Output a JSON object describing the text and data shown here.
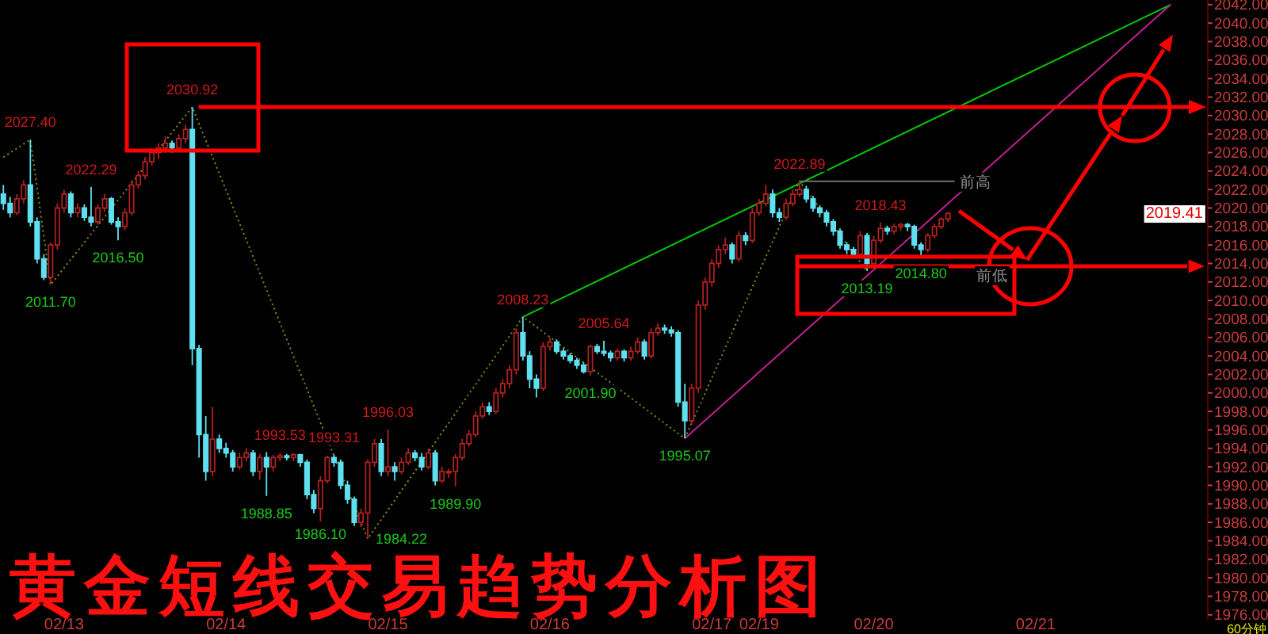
{
  "chart_data": {
    "type": "candlestick",
    "title": "黄金短线交易趋势分析图",
    "categories": [
      null,
      null,
      null,
      null,
      null,
      null,
      null,
      null,
      null,
      "02/13",
      null,
      null,
      null,
      null,
      null,
      null,
      null,
      null,
      null,
      null,
      null,
      null,
      null,
      null,
      null,
      null,
      null,
      null,
      null,
      null,
      null,
      null,
      null,
      "02/14",
      null,
      null,
      null,
      null,
      null,
      null,
      null,
      null,
      null,
      null,
      null,
      null,
      null,
      null,
      null,
      null,
      null,
      null,
      null,
      null,
      null,
      null,
      null,
      "02/15",
      null,
      null,
      null,
      null,
      null,
      null,
      null,
      null,
      null,
      null,
      null,
      null,
      null,
      null,
      null,
      null,
      null,
      null,
      null,
      null,
      null,
      null,
      null,
      "02/16",
      null,
      null,
      null,
      null,
      null,
      null,
      null,
      null,
      null,
      null,
      null,
      null,
      null,
      null,
      null,
      null,
      null,
      null,
      null,
      null,
      null,
      null,
      null,
      "02/17",
      null,
      null,
      null,
      null,
      null,
      null,
      "02/19",
      null,
      null,
      null,
      null,
      null,
      null,
      null,
      null,
      null,
      null,
      null,
      null,
      null,
      null,
      null,
      null,
      "02/20",
      null,
      null,
      null,
      null,
      null,
      null,
      null,
      null,
      null,
      null,
      null,
      null,
      null,
      null,
      null,
      null,
      null,
      null,
      null,
      null,
      null,
      null,
      null,
      "02/21",
      null,
      null,
      null,
      null,
      null,
      null,
      null,
      null,
      null,
      null,
      null,
      null,
      null,
      null,
      null,
      null,
      null,
      null,
      null,
      null,
      null,
      null,
      null,
      null,
      null
    ],
    "ohlc": [
      [
        2021.5,
        2022.5,
        2019.8,
        2020.5
      ],
      [
        2020.5,
        2021.2,
        2019,
        2019.5
      ],
      [
        2019.5,
        2021.5,
        2019.2,
        2021
      ],
      [
        2021,
        2023,
        2020.5,
        2022.5
      ],
      [
        2022.5,
        2027.4,
        2018,
        2018.5
      ],
      [
        2018.5,
        2019,
        2014,
        2014.5
      ],
      [
        2014.5,
        2015,
        2012.2,
        2012.5
      ],
      [
        2012.5,
        2016.3,
        2011.7,
        2016
      ],
      [
        2016,
        2020.5,
        2015.5,
        2020
      ],
      [
        2020,
        2022,
        2019.5,
        2021.5
      ],
      [
        2021.5,
        2021.8,
        2019,
        2019.5
      ],
      [
        2019.5,
        2020.5,
        2019,
        2020
      ],
      [
        2020,
        2020.4,
        2018.6,
        2019
      ],
      [
        2019,
        2022.29,
        2018,
        2018.5
      ],
      [
        2018.5,
        2020.4,
        2018.2,
        2020
      ],
      [
        2020,
        2021.5,
        2019.6,
        2021
      ],
      [
        2021,
        2021.2,
        2018.2,
        2018.5
      ],
      [
        2018.5,
        2019,
        2016.5,
        2018
      ],
      [
        2018,
        2020,
        2017.6,
        2019.5
      ],
      [
        2019.5,
        2023,
        2019.2,
        2022.5
      ],
      [
        2022.5,
        2024,
        2022.1,
        2023.5
      ],
      [
        2023.5,
        2025.5,
        2023.1,
        2025
      ],
      [
        2025,
        2026.5,
        2024.6,
        2026
      ],
      [
        2026,
        2027,
        2025.3,
        2026.5
      ],
      [
        2026.5,
        2027.8,
        2026,
        2027
      ],
      [
        2027,
        2027.3,
        2026,
        2026.5
      ],
      [
        2026.5,
        2028,
        2026,
        2027.5
      ],
      [
        2027.5,
        2029,
        2027,
        2028.5
      ],
      [
        2028.5,
        2030.92,
        2003,
        2004.8
      ],
      [
        2004.8,
        2005.2,
        1993,
        1995.5
      ],
      [
        1995.5,
        1997.5,
        1990.5,
        1991.5
      ],
      [
        1991.5,
        1998.5,
        1991,
        1995
      ],
      [
        1995,
        1995.5,
        1993.5,
        1994
      ],
      [
        1994,
        1994.6,
        1993,
        1993.5
      ],
      [
        1993.5,
        1993.8,
        1991.5,
        1992
      ],
      [
        1992,
        1993.5,
        1991.7,
        1993
      ],
      [
        1993,
        1994,
        1992.6,
        1993.5
      ],
      [
        1993.5,
        1993.8,
        1991,
        1991.5
      ],
      [
        1991.5,
        1993.4,
        1990.6,
        1993
      ],
      [
        1993,
        1993.6,
        1988.85,
        1992
      ],
      [
        1992,
        1993.3,
        1991.5,
        1993
      ],
      [
        1993,
        1993.53,
        1992.6,
        1993.2
      ],
      [
        1993.2,
        1993.4,
        1992.7,
        1993
      ],
      [
        1993,
        1993.5,
        1992.6,
        1993.3
      ],
      [
        1993.3,
        1993.4,
        1992,
        1992.5
      ],
      [
        1992.5,
        1992.8,
        1988.5,
        1989
      ],
      [
        1989,
        1989.5,
        1987,
        1987.5
      ],
      [
        1987.5,
        1991,
        1986.1,
        1990.5
      ],
      [
        1990.5,
        1993.2,
        1990.2,
        1993
      ],
      [
        1993,
        1993.31,
        1992,
        1992.5
      ],
      [
        1992.5,
        1992.8,
        1989.6,
        1990
      ],
      [
        1990,
        1990.5,
        1988,
        1988.5
      ],
      [
        1988.5,
        1988.8,
        1985.6,
        1986
      ],
      [
        1986,
        1987.5,
        1985.5,
        1987
      ],
      [
        1987,
        1992.8,
        1984.22,
        1992.5
      ],
      [
        1992.5,
        1995,
        1992,
        1994.5
      ],
      [
        1994.5,
        1995,
        1991,
        1991.5
      ],
      [
        1991.5,
        1996.03,
        1991,
        1992
      ],
      [
        1992,
        1992.5,
        1990.5,
        1991.5
      ],
      [
        1991.5,
        1993,
        1991.2,
        1992.5
      ],
      [
        1992.5,
        1994,
        1992.2,
        1993.5
      ],
      [
        1993.5,
        1993.8,
        1992.6,
        1993
      ],
      [
        1993,
        1993.5,
        1991.6,
        1992
      ],
      [
        1992,
        1994,
        1991.7,
        1993.5
      ],
      [
        1993.5,
        1993.8,
        1990,
        1990.5
      ],
      [
        1990.5,
        1992,
        1990.2,
        1991.5
      ],
      [
        1991.5,
        1991.8,
        1990.8,
        1991.5
      ],
      [
        1991.5,
        1993.4,
        1989.9,
        1993
      ],
      [
        1993,
        1995,
        1992.7,
        1994.5
      ],
      [
        1994.5,
        1996,
        1994.2,
        1995.5
      ],
      [
        1995.5,
        1998,
        1995.2,
        1997.5
      ],
      [
        1997.5,
        1999,
        1997.2,
        1998.5
      ],
      [
        1998.5,
        1999,
        1997.6,
        1998
      ],
      [
        1998,
        2000.5,
        1997.7,
        2000
      ],
      [
        2000,
        2001.5,
        1999.5,
        2001
      ],
      [
        2001,
        2003,
        2000.5,
        2002.5
      ],
      [
        2002.5,
        2007,
        2002,
        2006.5
      ],
      [
        2006.5,
        2008.23,
        2003.5,
        2004
      ],
      [
        2004,
        2004.5,
        2000.5,
        2001.5
      ],
      [
        2001.5,
        2002,
        1999.5,
        2000.5
      ],
      [
        2000.5,
        2005.5,
        2000.2,
        2005
      ],
      [
        2005,
        2006,
        2004.6,
        2005.5
      ],
      [
        2005.5,
        2005.8,
        2004.2,
        2004.5
      ],
      [
        2004.5,
        2004.8,
        2003.6,
        2004
      ],
      [
        2004,
        2004.3,
        2003.2,
        2003.5
      ],
      [
        2003.5,
        2003.8,
        2002.6,
        2003
      ],
      [
        2003,
        2003.3,
        2002.1,
        2002.3
      ],
      [
        2002.3,
        2005.2,
        2001.9,
        2005
      ],
      [
        2005,
        2005.3,
        2004.2,
        2004.5
      ],
      [
        2004.5,
        2005.64,
        2004,
        2004.3
      ],
      [
        2004.3,
        2004.6,
        2003.4,
        2003.8
      ],
      [
        2003.8,
        2004.8,
        2003.5,
        2004.5
      ],
      [
        2004.5,
        2004.7,
        2003.4,
        2003.8
      ],
      [
        2003.8,
        2005,
        2003.5,
        2004.5
      ],
      [
        2004.5,
        2006,
        2004.2,
        2005.5
      ],
      [
        2005.5,
        2005.8,
        2003.6,
        2004
      ],
      [
        2004,
        2007,
        2003.7,
        2006.5
      ],
      [
        2006.5,
        2007.5,
        2006.2,
        2007
      ],
      [
        2007,
        2007.4,
        2006.4,
        2006.8
      ],
      [
        2006.8,
        2007.2,
        2006.1,
        2006.5
      ],
      [
        2006.5,
        2006.8,
        1998.5,
        1999
      ],
      [
        1999,
        2001,
        1995.07,
        1997
      ],
      [
        1997,
        2001,
        1996.5,
        2000.5
      ],
      [
        2000.5,
        2010,
        2000,
        2009.5
      ],
      [
        2009.5,
        2012.5,
        2009,
        2012
      ],
      [
        2012,
        2014.5,
        2011.5,
        2014
      ],
      [
        2014,
        2016,
        2013.5,
        2015.5
      ],
      [
        2015.5,
        2016.8,
        2015,
        2016
      ],
      [
        2016,
        2016.3,
        2014,
        2014.5
      ],
      [
        2014.5,
        2017.5,
        2014.2,
        2017
      ],
      [
        2017,
        2017.4,
        2016,
        2016.5
      ],
      [
        2016.5,
        2020,
        2016.2,
        2019.5
      ],
      [
        2019.5,
        2021,
        2019.2,
        2020.5
      ],
      [
        2020.5,
        2022.5,
        2020.2,
        2021.5
      ],
      [
        2021.5,
        2022,
        2019,
        2019.5
      ],
      [
        2019.5,
        2020,
        2018.5,
        2019
      ],
      [
        2019,
        2021,
        2018.7,
        2020.5
      ],
      [
        2020.5,
        2022,
        2020.2,
        2021.5
      ],
      [
        2021.5,
        2022.89,
        2021.2,
        2022
      ],
      [
        2022,
        2022.4,
        2020.6,
        2021
      ],
      [
        2021,
        2021.3,
        2019.6,
        2020
      ],
      [
        2020,
        2020.3,
        2019,
        2019.5
      ],
      [
        2019.5,
        2019.8,
        2018,
        2018.5
      ],
      [
        2018.5,
        2018.8,
        2017,
        2017.5
      ],
      [
        2017.5,
        2017.8,
        2015.6,
        2016
      ],
      [
        2016,
        2016.3,
        2015,
        2015.5
      ],
      [
        2015.5,
        2015.8,
        2014.6,
        2015
      ],
      [
        2015,
        2017.5,
        2014.7,
        2017
      ],
      [
        2017,
        2017.3,
        2013.19,
        2014
      ],
      [
        2014,
        2017,
        2013.8,
        2016.5
      ],
      [
        2016.5,
        2018.43,
        2016.2,
        2017.8
      ],
      [
        2017.8,
        2018.1,
        2017.1,
        2017.5
      ],
      [
        2017.5,
        2018.3,
        2017.2,
        2018
      ],
      [
        2018,
        2018.4,
        2017.6,
        2018.2
      ],
      [
        2018.2,
        2018.4,
        2017.5,
        2018
      ],
      [
        2018,
        2018.2,
        2015.6,
        2016
      ],
      [
        2016,
        2016.3,
        2014.8,
        2015.5
      ],
      [
        2015.5,
        2017.3,
        2015.2,
        2017
      ],
      [
        2017,
        2018.3,
        2016.7,
        2018
      ],
      [
        2018,
        2019,
        2017.7,
        2018.8
      ],
      [
        2018.8,
        2019.6,
        2018.5,
        2019.41
      ],
      null,
      null,
      null,
      null,
      null,
      null,
      null,
      null,
      null,
      null,
      null,
      null,
      null,
      null,
      null,
      null,
      null,
      null,
      null,
      null,
      null,
      null,
      null,
      null,
      null,
      null,
      null,
      null,
      null,
      null,
      null,
      null,
      null,
      null,
      null,
      null,
      null,
      null
    ],
    "series": [
      {
        "type": "line",
        "color": "#8a8a10",
        "line_style": "dotted",
        "values": [
          2025.5,
          null,
          null,
          null,
          2027.4,
          null,
          null,
          2011.7,
          null,
          null,
          null,
          null,
          null,
          null,
          null,
          null,
          null,
          null,
          null,
          null,
          null,
          null,
          null,
          null,
          null,
          null,
          null,
          null,
          2030.92,
          null,
          null,
          null,
          null,
          null,
          null,
          null,
          null,
          null,
          null,
          null,
          null,
          null,
          null,
          null,
          null,
          null,
          null,
          null,
          null,
          null,
          null,
          null,
          null,
          null,
          1984.22,
          null,
          null,
          null,
          null,
          null,
          null,
          null,
          null,
          null,
          null,
          null,
          null,
          null,
          null,
          null,
          null,
          null,
          null,
          null,
          null,
          null,
          null,
          2008.23,
          null,
          null,
          null,
          null,
          null,
          null,
          null,
          null,
          null,
          null,
          null,
          null,
          null,
          null,
          null,
          null,
          null,
          null,
          null,
          null,
          null,
          null,
          null,
          1995.07,
          null,
          null,
          null,
          null,
          null,
          null,
          null,
          null,
          null,
          null,
          null,
          null,
          null,
          null,
          null,
          null,
          2022.89,
          null,
          null,
          null,
          null,
          null,
          null,
          null,
          null,
          null,
          2013.19,
          null,
          null,
          null,
          null,
          null,
          null,
          null,
          null,
          null,
          null,
          null,
          null,
          null,
          null,
          null,
          null,
          null,
          null,
          null,
          null,
          null,
          null,
          null,
          null,
          null,
          null,
          null,
          null,
          null,
          null,
          null,
          null,
          null,
          null,
          null,
          null,
          null,
          null,
          null,
          null,
          null,
          null,
          null,
          null,
          null,
          null,
          null,
          null,
          null,
          null
        ]
      },
      {
        "type": "line",
        "color": "#00c800",
        "line_style": "solid",
        "values": [
          null,
          null,
          null,
          null,
          null,
          null,
          null,
          null,
          null,
          null,
          null,
          null,
          null,
          null,
          null,
          null,
          null,
          null,
          null,
          null,
          null,
          null,
          null,
          null,
          null,
          null,
          null,
          null,
          null,
          null,
          null,
          null,
          null,
          null,
          null,
          null,
          null,
          null,
          null,
          null,
          null,
          null,
          null,
          null,
          null,
          null,
          null,
          null,
          null,
          null,
          null,
          null,
          null,
          null,
          null,
          null,
          null,
          null,
          null,
          null,
          null,
          null,
          null,
          null,
          null,
          null,
          null,
          null,
          null,
          null,
          null,
          null,
          null,
          null,
          null,
          null,
          null,
          2008.23,
          null,
          null,
          null,
          null,
          null,
          null,
          null,
          null,
          null,
          null,
          null,
          null,
          null,
          null,
          null,
          null,
          null,
          null,
          null,
          null,
          null,
          null,
          null,
          null,
          null,
          null,
          null,
          null,
          null,
          null,
          null,
          null,
          null,
          null,
          null,
          null,
          null,
          null,
          null,
          null,
          null,
          null,
          null,
          null,
          null,
          null,
          null,
          null,
          null,
          null,
          null,
          null,
          null,
          null,
          null,
          null,
          null,
          null,
          null,
          null,
          null,
          null,
          null,
          null,
          null,
          null,
          null,
          null,
          null,
          null,
          null,
          null,
          null,
          null,
          null,
          null,
          null,
          null,
          null,
          null,
          null,
          null,
          null,
          null,
          null,
          null,
          null,
          null,
          null,
          null,
          null,
          null,
          null,
          null,
          null,
          2042,
          null,
          null,
          null,
          null,
          null
        ]
      },
      {
        "type": "line",
        "color": "#c0208a",
        "line_style": "solid",
        "values": [
          null,
          null,
          null,
          null,
          null,
          null,
          null,
          null,
          null,
          null,
          null,
          null,
          null,
          null,
          null,
          null,
          null,
          null,
          null,
          null,
          null,
          null,
          null,
          null,
          null,
          null,
          null,
          null,
          null,
          null,
          null,
          null,
          null,
          null,
          null,
          null,
          null,
          null,
          null,
          null,
          null,
          null,
          null,
          null,
          null,
          null,
          null,
          null,
          null,
          null,
          null,
          null,
          null,
          null,
          null,
          null,
          null,
          null,
          null,
          null,
          null,
          null,
          null,
          null,
          null,
          null,
          null,
          null,
          null,
          null,
          null,
          null,
          null,
          null,
          null,
          null,
          null,
          null,
          null,
          null,
          null,
          null,
          null,
          null,
          null,
          null,
          null,
          null,
          null,
          null,
          null,
          null,
          null,
          null,
          null,
          null,
          null,
          null,
          null,
          null,
          null,
          1995.07,
          null,
          null,
          null,
          null,
          null,
          null,
          null,
          null,
          null,
          null,
          null,
          null,
          null,
          null,
          null,
          null,
          null,
          null,
          null,
          null,
          null,
          null,
          null,
          null,
          null,
          null,
          null,
          null,
          null,
          null,
          null,
          null,
          null,
          null,
          null,
          null,
          null,
          null,
          null,
          null,
          null,
          null,
          null,
          null,
          null,
          null,
          null,
          null,
          null,
          null,
          null,
          null,
          null,
          null,
          null,
          null,
          null,
          null,
          null,
          null,
          null,
          null,
          null,
          null,
          null,
          null,
          null,
          null,
          null,
          null,
          null,
          2042,
          null,
          null,
          null,
          null,
          null
        ]
      },
      {
        "type": "line",
        "color": "#707070",
        "line_style": "solid",
        "values": [
          null,
          null,
          null,
          null,
          null,
          null,
          null,
          null,
          null,
          null,
          null,
          null,
          null,
          null,
          null,
          null,
          null,
          null,
          null,
          null,
          null,
          null,
          null,
          null,
          null,
          null,
          null,
          null,
          null,
          null,
          null,
          null,
          null,
          null,
          null,
          null,
          null,
          null,
          null,
          null,
          null,
          null,
          null,
          null,
          null,
          null,
          null,
          null,
          null,
          null,
          null,
          null,
          null,
          null,
          null,
          null,
          null,
          null,
          null,
          null,
          null,
          null,
          null,
          null,
          null,
          null,
          null,
          null,
          null,
          null,
          null,
          null,
          null,
          null,
          null,
          null,
          null,
          null,
          null,
          null,
          null,
          null,
          null,
          null,
          null,
          null,
          null,
          null,
          null,
          null,
          null,
          null,
          null,
          null,
          null,
          null,
          null,
          null,
          null,
          null,
          null,
          null,
          null,
          null,
          null,
          null,
          null,
          null,
          null,
          null,
          null,
          null,
          null,
          null,
          null,
          null,
          null,
          null,
          2022.89,
          null,
          null,
          null,
          null,
          null,
          null,
          null,
          null,
          null,
          null,
          null,
          null,
          null,
          null,
          null,
          null,
          null,
          null,
          null,
          null,
          null,
          null,
          2022.89,
          null,
          null,
          null,
          null,
          null,
          null,
          null,
          null,
          null,
          null,
          null,
          null,
          null,
          null,
          null,
          null,
          null,
          null,
          null,
          null,
          null,
          null,
          null,
          null,
          null,
          null,
          null,
          null,
          null,
          null,
          null,
          null,
          null,
          null,
          null,
          null,
          null
        ]
      }
    ],
    "ref_lines": [
      {
        "axis": "y",
        "value": 2030.92,
        "color": "#ff0000"
      }
    ],
    "ylim": [
      1975.5,
      2042.5
    ],
    "yticks": [
      {
        "value": 1976,
        "label": "1976.00"
      },
      {
        "value": 1978,
        "label": "1978.00"
      },
      {
        "value": 1980,
        "label": "1980.00"
      },
      {
        "value": 1982,
        "label": "1982.00"
      },
      {
        "value": 1984,
        "label": "1984.00"
      },
      {
        "value": 1986,
        "label": "1986.00"
      },
      {
        "value": 1988,
        "label": "1988.00"
      },
      {
        "value": 1990,
        "label": "1990.00"
      },
      {
        "value": 1992,
        "label": "1992.00"
      },
      {
        "value": 1994,
        "label": "1994.00"
      },
      {
        "value": 1996,
        "label": "1996.00"
      },
      {
        "value": 1998,
        "label": "1998.00"
      },
      {
        "value": 2000,
        "label": "2000.00"
      },
      {
        "value": 2002,
        "label": "2002.00"
      },
      {
        "value": 2004,
        "label": "2004.00"
      },
      {
        "value": 2006,
        "label": "2006.00"
      },
      {
        "value": 2008,
        "label": "2008.00"
      },
      {
        "value": 2010,
        "label": "2010.00"
      },
      {
        "value": 2012,
        "label": "2012.00"
      },
      {
        "value": 2014,
        "label": "2014.00"
      },
      {
        "value": 2016,
        "label": "2016.00"
      },
      {
        "value": 2018,
        "label": "2018.00"
      },
      {
        "value": 2020,
        "label": "2020.00"
      },
      {
        "value": 2022,
        "label": "2022.00"
      },
      {
        "value": 2024,
        "label": "2024.00"
      },
      {
        "value": 2026,
        "label": "2026.00"
      },
      {
        "value": 2028,
        "label": "2028.00"
      },
      {
        "value": 2030,
        "label": "2030.00"
      },
      {
        "value": 2032,
        "label": "2032.00"
      },
      {
        "value": 2034,
        "label": "2034.00"
      },
      {
        "value": 2036,
        "label": "2036.00"
      },
      {
        "value": 2038,
        "label": "2038.00"
      },
      {
        "value": 2040,
        "label": "2040.00"
      },
      {
        "value": 2042,
        "label": "2042.00"
      }
    ],
    "annotations": [
      {
        "text": "2027.40",
        "y": 2027.4
      },
      {
        "text": "2022.29",
        "y": 2022.29
      },
      {
        "text": "2030.92",
        "y": 2030.92
      },
      {
        "text": "2011.70",
        "y": 2011.7
      },
      {
        "text": "2016.50",
        "y": 2016.5
      },
      {
        "text": "1993.53",
        "y": 1993.53
      },
      {
        "text": "1993.31",
        "y": 1993.31
      },
      {
        "text": "1996.03",
        "y": 1996.03
      },
      {
        "text": "1988.85",
        "y": 1988.85
      },
      {
        "text": "1986.10",
        "y": 1986.1
      },
      "1984.22",
      {
        "text": "1989.90",
        "y": 1989.9
      },
      {
        "text": "2008.23",
        "y": 2008.23
      },
      {
        "text": "2005.64",
        "y": 2005.64
      },
      {
        "text": "2001.90",
        "y": 2001.9
      },
      {
        "text": "1995.07",
        "y": 1995.07
      },
      {
        "text": "2022.89",
        "y": 2022.89
      },
      {
        "text": "2018.43",
        "y": 2018.43
      },
      {
        "text": "2013.19",
        "y": 2013.19
      },
      {
        "text": "2014.80",
        "y": 2014.8
      },
      {
        "text": "前高",
        "y": 2022.89
      },
      "前低",
      "2019.41",
      "60分钟"
    ]
  }
}
